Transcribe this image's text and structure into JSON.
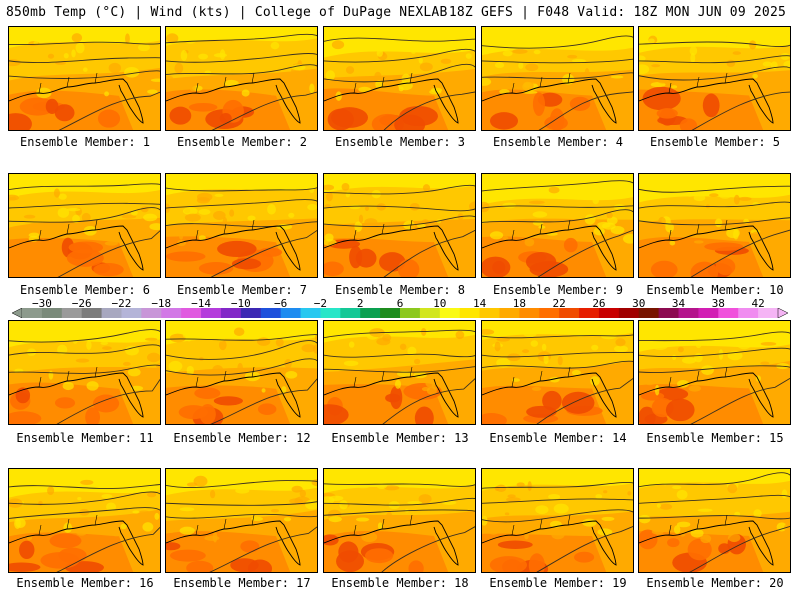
{
  "header": {
    "left": "850mb Temp (°C) | Wind (kts) | College of DuPage NEXLAB",
    "right": "18Z GEFS | F048 Valid: 18Z MON JUN 09 2025"
  },
  "members": [
    {
      "label": "Ensemble Member: 1"
    },
    {
      "label": "Ensemble Member: 2"
    },
    {
      "label": "Ensemble Member: 3"
    },
    {
      "label": "Ensemble Member: 4"
    },
    {
      "label": "Ensemble Member: 5"
    },
    {
      "label": "Ensemble Member: 6"
    },
    {
      "label": "Ensemble Member: 7"
    },
    {
      "label": "Ensemble Member: 8"
    },
    {
      "label": "Ensemble Member: 9"
    },
    {
      "label": "Ensemble Member: 10"
    },
    {
      "label": "Ensemble Member: 11"
    },
    {
      "label": "Ensemble Member: 12"
    },
    {
      "label": "Ensemble Member: 13"
    },
    {
      "label": "Ensemble Member: 14"
    },
    {
      "label": "Ensemble Member: 15"
    },
    {
      "label": "Ensemble Member: 16"
    },
    {
      "label": "Ensemble Member: 17"
    },
    {
      "label": "Ensemble Member: 18"
    },
    {
      "label": "Ensemble Member: 19"
    },
    {
      "label": "Ensemble Member: 20"
    }
  ],
  "colorbar": {
    "tick_labels": [
      "−30",
      "−26",
      "−22",
      "−18",
      "−14",
      "−10",
      "−6",
      "−2",
      "2",
      "6",
      "10",
      "14",
      "18",
      "22",
      "26",
      "30",
      "34",
      "38",
      "42"
    ],
    "colors": [
      "#8c9a8c",
      "#7a8a7a",
      "#9a9a9a",
      "#7c7c7c",
      "#a8a8c0",
      "#b4b4d8",
      "#c896d8",
      "#d278e6",
      "#e05ae0",
      "#b43cdc",
      "#8228c8",
      "#3c28b4",
      "#1e50dc",
      "#1e8cf0",
      "#28c8f0",
      "#28e6c8",
      "#14c896",
      "#0aa050",
      "#1e8c1e",
      "#8cc81e",
      "#d2e61e",
      "#fafa14",
      "#ffe600",
      "#ffc800",
      "#ffaa00",
      "#ff8c00",
      "#ff6e00",
      "#f04b00",
      "#e61e00",
      "#c80000",
      "#a00000",
      "#781400",
      "#8c0a50",
      "#b4148c",
      "#d21eb4",
      "#f050dc",
      "#f08cf0",
      "#f5b4f5"
    ]
  },
  "legend_colors": {
    "t_yellow": "#ffe600",
    "t_lightorange": "#ffc800",
    "t_orange": "#ffaa00",
    "t_darkorange": "#ff8c00",
    "t_red": "#ff6e00",
    "t_deepred": "#f04b00",
    "contour": "#3a3020",
    "coast": "#000000"
  }
}
